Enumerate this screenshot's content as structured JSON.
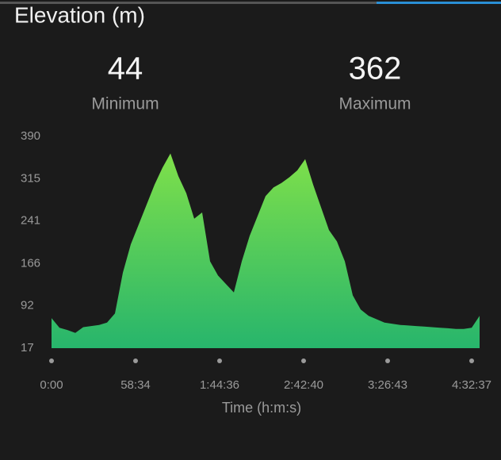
{
  "chart_data": {
    "type": "area",
    "title": "Elevation (m)",
    "stats": [
      {
        "value": 44,
        "label": "Minimum"
      },
      {
        "value": 362,
        "label": "Maximum"
      }
    ],
    "x_label": "Time (h:m:s)",
    "xticks": [
      "0:00",
      "58:34",
      "1:44:36",
      "2:42:40",
      "3:26:43",
      "4:32:37"
    ],
    "values": [
      70,
      53,
      49,
      44,
      54,
      56,
      58,
      62,
      78,
      150,
      200,
      235,
      270,
      305,
      335,
      360,
      320,
      290,
      245,
      256,
      170,
      145,
      130,
      115,
      170,
      215,
      250,
      285,
      300,
      308,
      318,
      330,
      350,
      305,
      265,
      225,
      205,
      170,
      110,
      85,
      74,
      68,
      62,
      60,
      58,
      57,
      56,
      55,
      54,
      53,
      52,
      51,
      51,
      53,
      74
    ],
    "color_top": "#7fe04a",
    "color_bottom": "#27b56c",
    "ylim": [
      17,
      390
    ],
    "yticks": [
      390,
      315,
      241,
      166,
      92,
      17
    ]
  }
}
